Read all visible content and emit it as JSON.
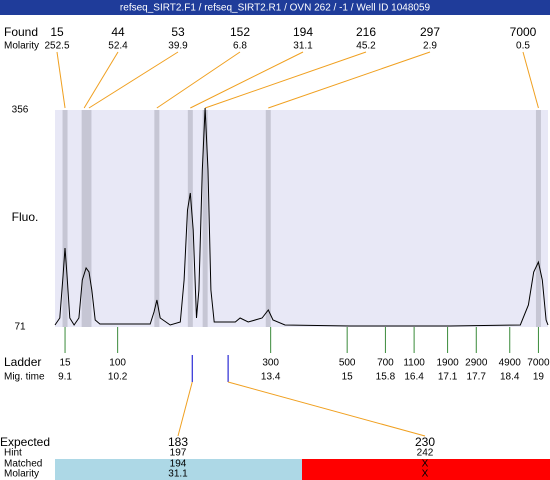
{
  "title": "refseq_SIRT2.F1 / refseq_SIRT2.R1 / OVN 262 / -1 / Well ID 1048059",
  "found": {
    "label": "Found",
    "molarity_label": "Molarity",
    "peaks": [
      {
        "size": 15,
        "molarity": 252.5,
        "time": 9.1
      },
      {
        "size": 44,
        "molarity": 52.4,
        "time": 9.5
      },
      {
        "size": 53,
        "molarity": 39.9,
        "time": 9.6
      },
      {
        "size": 152,
        "molarity": 6.8,
        "time": 11.02
      },
      {
        "size": 194,
        "molarity": 31.1,
        "time": 11.72
      },
      {
        "size": 216,
        "molarity": 45.2,
        "time": 12.03
      },
      {
        "size": 297,
        "molarity": 2.9,
        "time": 13.35
      },
      {
        "size": 7000,
        "molarity": 0.5,
        "time": 19.0
      }
    ]
  },
  "chart": {
    "type": "line",
    "y_label": "Fluo.",
    "ylim": [
      71,
      356
    ],
    "yticks": [
      71,
      356
    ],
    "xlim": [
      8.89,
      19.2
    ],
    "color": "#000000",
    "x": [
      8.89,
      8.99,
      9.06,
      9.1,
      9.14,
      9.2,
      9.29,
      9.39,
      9.46,
      9.54,
      9.6,
      9.66,
      9.73,
      9.83,
      10.88,
      10.96,
      11.02,
      11.09,
      11.3,
      11.51,
      11.59,
      11.66,
      11.72,
      11.78,
      11.85,
      11.9,
      11.97,
      12.03,
      12.09,
      12.15,
      12.22,
      12.45,
      12.66,
      12.76,
      12.93,
      13.22,
      13.35,
      13.45,
      13.7,
      15.06,
      17.15,
      18.62,
      18.79,
      18.9,
      19.0,
      19.08,
      19.16,
      19.2
    ],
    "values": [
      73.6,
      82.8,
      139.3,
      174.7,
      139.3,
      82.8,
      73.6,
      82.8,
      132.7,
      148.5,
      143.2,
      119.6,
      80.2,
      74.9,
      74.9,
      90.7,
      106.5,
      82.8,
      73.6,
      77.6,
      132.7,
      224.6,
      247.0,
      198.4,
      82.8,
      119.6,
      277.2,
      358.6,
      277.2,
      119.6,
      77.6,
      77.6,
      77.6,
      82.8,
      77.6,
      82.8,
      93.3,
      80.2,
      73.6,
      72.3,
      72.3,
      73.6,
      99.9,
      143.2,
      156.3,
      132.7,
      80.2,
      73.6
    ]
  },
  "ladder": {
    "label": "Ladder",
    "time_label": "Mig. time",
    "bands": [
      {
        "size": 15,
        "time": 9.1
      },
      {
        "size": 100,
        "time": 10.2
      },
      {
        "size": 300,
        "time": 13.4
      },
      {
        "size": 500,
        "time": 15
      },
      {
        "size": 700,
        "time": 15.8
      },
      {
        "size": 1100,
        "time": 16.4
      },
      {
        "size": 1900,
        "time": 17.1
      },
      {
        "size": 2900,
        "time": 17.7
      },
      {
        "size": 4900,
        "time": 18.4
      },
      {
        "size": 7000,
        "time": 19
      }
    ]
  },
  "expected": {
    "label": "Expected",
    "hint_label": "Hint",
    "matched_label": "Matched",
    "molarity_label": "Molarity",
    "items": [
      {
        "size": 183,
        "hint": 197,
        "matched": 194,
        "molarity": 31.1,
        "time": 11.76
      },
      {
        "size": 230,
        "hint": 242,
        "matched": "X",
        "molarity": "X",
        "time": 12.51
      }
    ]
  }
}
